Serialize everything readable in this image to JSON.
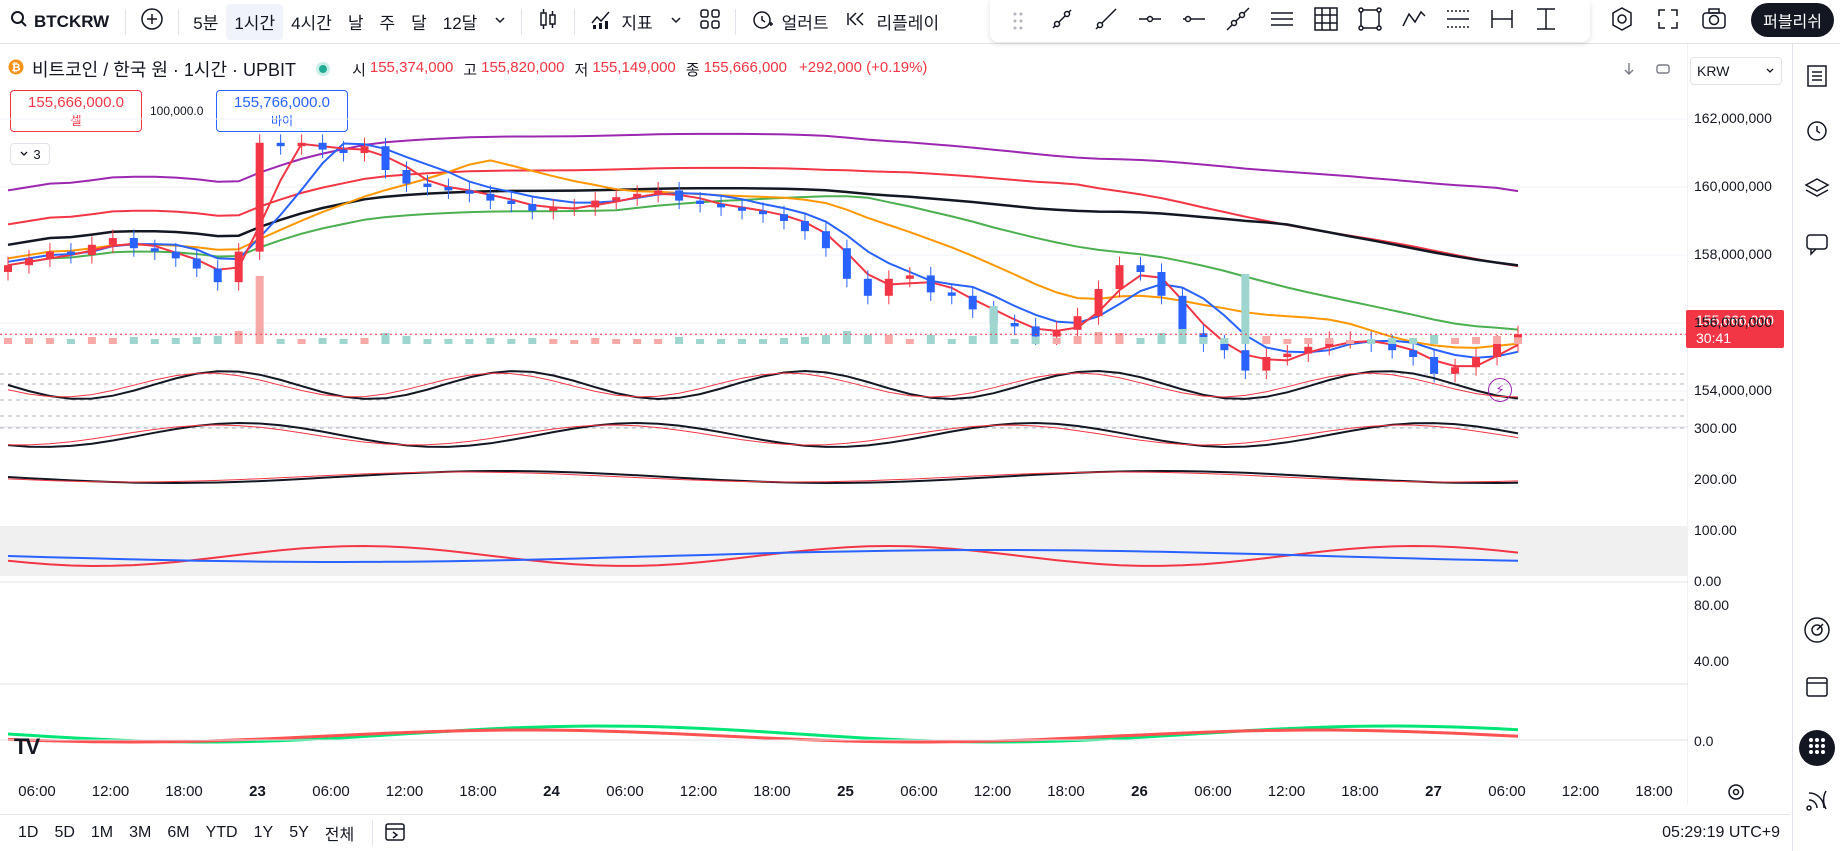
{
  "toolbar": {
    "symbol": "BTCKRW",
    "intervals": [
      "5분",
      "1시간",
      "4시간",
      "날",
      "주",
      "달",
      "12달"
    ],
    "active_interval": "1시간",
    "indicators_label": "지표",
    "alert_label": "얼러트",
    "replay_label": "리플레이",
    "publish_label": "퍼블리쉬"
  },
  "legend": {
    "title": "비트코인 / 한국 원 · 1시간 · UPBIT",
    "open_label": "시",
    "open": "155,374,000",
    "high_label": "고",
    "high": "155,820,000",
    "low_label": "저",
    "low": "155,149,000",
    "close_label": "종",
    "close": "155,666,000",
    "change": "+292,000 (+0.19%)"
  },
  "trade": {
    "sell_price": "155,666,000.0",
    "sell_label": "셀",
    "buy_price": "155,766,000.0",
    "buy_label": "바이",
    "qty": "100,000.0"
  },
  "collapse_count": "3",
  "currency": "KRW",
  "price_axis": [
    "162,000,000",
    "160,000,000",
    "158,000,000",
    "156,000,000",
    "154,000,000"
  ],
  "current_price": "155,666,000",
  "countdown": "30:41",
  "osc1_axis": [
    "300.00",
    "200.00",
    "100.00",
    "0.00"
  ],
  "osc2_axis": [
    "80.00",
    "40.00"
  ],
  "osc3_axis": [
    "0.0"
  ],
  "time_axis": [
    "06:00",
    "12:00",
    "18:00",
    "23",
    "06:00",
    "12:00",
    "18:00",
    "24",
    "06:00",
    "12:00",
    "18:00",
    "25",
    "06:00",
    "12:00",
    "18:00",
    "26",
    "06:00",
    "12:00",
    "18:00",
    "27",
    "06:00",
    "12:00",
    "18:00"
  ],
  "ranges": [
    "1D",
    "5D",
    "1M",
    "3M",
    "6M",
    "YTD",
    "1Y",
    "5Y",
    "전체"
  ],
  "clock": "05:29:19 UTC+9",
  "colors": {
    "up": "#f23645",
    "down": "#2962ff",
    "accent": "#2962ff"
  },
  "chart_data": {
    "type": "candlestick",
    "interval": "1h",
    "close_series": [
      157.7,
      157.9,
      158.1,
      158.0,
      158.3,
      158.5,
      158.2,
      158.1,
      157.9,
      157.6,
      157.2,
      158.1,
      161.3,
      161.2,
      161.3,
      161.1,
      161.0,
      161.2,
      160.5,
      160.1,
      160.0,
      159.9,
      159.8,
      159.6,
      159.5,
      159.3,
      159.4,
      159.4,
      159.6,
      159.7,
      159.8,
      159.9,
      159.6,
      159.5,
      159.4,
      159.3,
      159.2,
      159.0,
      158.7,
      158.2,
      157.3,
      156.8,
      157.3,
      157.4,
      156.9,
      156.8,
      156.4,
      156.0,
      155.9,
      155.6,
      155.8,
      156.2,
      157.0,
      157.7,
      157.5,
      156.8,
      155.7,
      155.4,
      155.2,
      154.6,
      155.0,
      155.1,
      155.3,
      155.5,
      155.5,
      155.4,
      155.2,
      155.0,
      154.5,
      154.7,
      155.0,
      155.4,
      155.67
    ]
  }
}
